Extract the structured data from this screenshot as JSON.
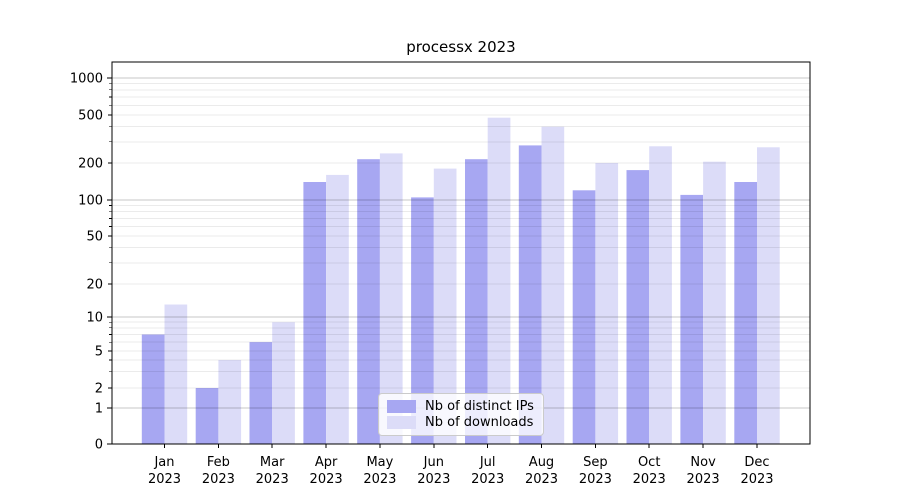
{
  "chart_data": {
    "type": "bar",
    "title": "processx 2023",
    "months": [
      "Jan",
      "Feb",
      "Mar",
      "Apr",
      "May",
      "Jun",
      "Jul",
      "Aug",
      "Sep",
      "Oct",
      "Nov",
      "Dec"
    ],
    "year": "2023",
    "xlabel": "",
    "ylabel": "",
    "yscale": "symlog",
    "yticks": [
      0,
      1,
      2,
      5,
      10,
      20,
      50,
      100,
      200,
      500,
      1000
    ],
    "ylim": [
      0,
      1350
    ],
    "grid": true,
    "legend_position": "lower center",
    "series": [
      {
        "name": "Nb of distinct IPs",
        "color": "#a7a7f2",
        "values": [
          7,
          2,
          6,
          140,
          215,
          105,
          215,
          280,
          120,
          175,
          110,
          140
        ]
      },
      {
        "name": "Nb of downloads",
        "color": "#dcdcf8",
        "values": [
          13,
          4,
          9,
          160,
          240,
          180,
          475,
          400,
          200,
          275,
          205,
          270
        ]
      }
    ]
  }
}
